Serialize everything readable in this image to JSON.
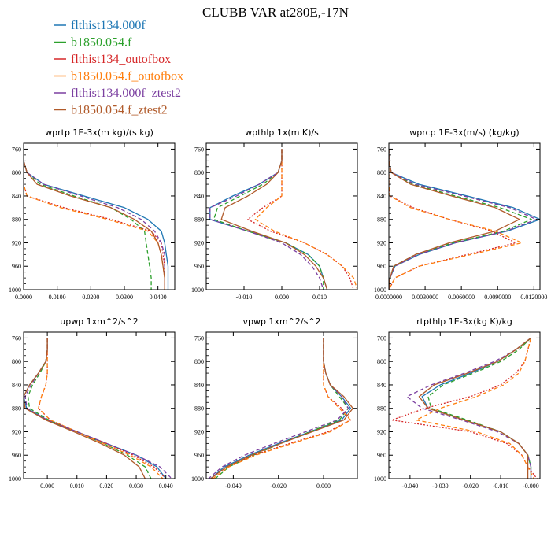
{
  "figure": {
    "title": "CLUBB VAR at280E,-17N"
  },
  "colors": {
    "flthist134.000f": "#1f77b4",
    "b1850.054.f": "#2ca02c",
    "flthist134_outofbox": "#d62728",
    "b1850.054.f_outofbox": "#ff7f0e",
    "flthist134.000f_ztest2": "#7b3fa0",
    "b1850.054.f_ztest2": "#b05a2a"
  },
  "legend": [
    {
      "label": "flthist134.000f",
      "style": "solid"
    },
    {
      "label": "b1850.054.f",
      "style": "dashed"
    },
    {
      "label": "flthist134_outofbox",
      "style": "dotted"
    },
    {
      "label": "b1850.054.f_outofbox",
      "style": "dashed"
    },
    {
      "label": "flthist134.000f_ztest2",
      "style": "dashed"
    },
    {
      "label": "b1850.054.f_ztest2",
      "style": "solid"
    }
  ],
  "chart_data": [
    {
      "type": "line",
      "title": "wprtp   1E-3x(m kg)/(s kg)",
      "xlim": [
        0.0,
        0.045
      ],
      "ylim": [
        1000,
        750
      ],
      "xticks": [
        0.0,
        0.01,
        0.02,
        0.03,
        0.04
      ],
      "xtick_labels": [
        "0.0000",
        "0.0100",
        "0.0200",
        "0.0300",
        "0.0400"
      ],
      "yticks": [
        760,
        800,
        840,
        880,
        920,
        960,
        1000
      ],
      "y": [
        760,
        780,
        800,
        820,
        840,
        860,
        880,
        900,
        920,
        940,
        960,
        980,
        1000
      ],
      "series": [
        {
          "name": "flthist134.000f",
          "values": [
            0.0,
            0.0,
            0.001,
            0.006,
            0.018,
            0.03,
            0.037,
            0.041,
            0.042,
            0.0425,
            0.043,
            0.043,
            0.043
          ]
        },
        {
          "name": "b1850.054.f",
          "values": [
            0.0,
            0.0,
            0.001,
            0.005,
            0.015,
            0.026,
            0.032,
            0.036,
            0.0365,
            0.037,
            0.0375,
            0.038,
            0.038
          ]
        },
        {
          "name": "flthist134_outofbox",
          "values": [
            0.0,
            0.0,
            0.0,
            0.0,
            0.001,
            0.012,
            0.026,
            0.038,
            0.041,
            0.0415,
            0.042,
            0.042,
            0.042
          ]
        },
        {
          "name": "b1850.054.f_outofbox",
          "values": [
            0.0,
            0.0,
            0.0,
            0.0,
            0.001,
            0.011,
            0.025,
            0.037,
            0.04,
            0.041,
            0.0415,
            0.042,
            0.042
          ]
        },
        {
          "name": "flthist134.000f_ztest2",
          "values": [
            0.0,
            0.0,
            0.001,
            0.006,
            0.017,
            0.028,
            0.035,
            0.039,
            0.041,
            0.042,
            0.042,
            0.042,
            0.042
          ]
        },
        {
          "name": "b1850.054.f_ztest2",
          "values": [
            0.0,
            0.0,
            0.001,
            0.004,
            0.014,
            0.026,
            0.033,
            0.038,
            0.04,
            0.041,
            0.0415,
            0.042,
            0.042
          ]
        }
      ]
    },
    {
      "type": "line",
      "title": "wpthlp   1x(m K)/s",
      "xlim": [
        -0.02,
        0.02
      ],
      "ylim": [
        1000,
        750
      ],
      "xticks": [
        -0.01,
        0.0,
        0.01
      ],
      "xtick_labels": [
        "-0.010",
        "0.000",
        "0.010"
      ],
      "yticks": [
        760,
        800,
        840,
        880,
        920,
        960,
        1000
      ],
      "y": [
        760,
        780,
        800,
        820,
        840,
        860,
        880,
        900,
        920,
        940,
        960,
        980,
        1000
      ],
      "series": [
        {
          "name": "flthist134.000f",
          "values": [
            0.0,
            0.0,
            -0.001,
            -0.006,
            -0.013,
            -0.019,
            -0.019,
            -0.009,
            0.001,
            0.007,
            0.01,
            0.011,
            0.012
          ]
        },
        {
          "name": "b1850.054.f",
          "values": [
            0.0,
            0.0,
            -0.001,
            -0.005,
            -0.011,
            -0.017,
            -0.018,
            -0.009,
            0.001,
            0.007,
            0.01,
            0.011,
            0.011
          ]
        },
        {
          "name": "flthist134_outofbox",
          "values": [
            0.0,
            0.0,
            0.0,
            0.0,
            0.0,
            -0.005,
            -0.009,
            -0.003,
            0.006,
            0.012,
            0.016,
            0.018,
            0.019
          ]
        },
        {
          "name": "b1850.054.f_outofbox",
          "values": [
            0.0,
            0.0,
            0.0,
            0.0,
            0.0,
            -0.004,
            -0.007,
            -0.002,
            0.006,
            0.012,
            0.016,
            0.019,
            0.02
          ]
        },
        {
          "name": "flthist134.000f_ztest2",
          "values": [
            0.0,
            0.0,
            -0.001,
            -0.006,
            -0.012,
            -0.019,
            -0.019,
            -0.009,
            0.0,
            0.005,
            0.008,
            0.01,
            0.011
          ]
        },
        {
          "name": "b1850.054.f_ztest2",
          "values": [
            0.0,
            0.0,
            -0.001,
            -0.004,
            -0.009,
            -0.015,
            -0.016,
            -0.008,
            0.001,
            0.006,
            0.009,
            0.011,
            0.012
          ]
        }
      ]
    },
    {
      "type": "line",
      "title": "wprcp   1E-3x(m/s) (kg/kg)",
      "xlim": [
        0.0,
        0.0125
      ],
      "ylim": [
        1000,
        750
      ],
      "xticks": [
        0.0,
        0.003,
        0.006,
        0.009,
        0.012
      ],
      "xtick_labels": [
        "0.0000000",
        "0.0030000",
        "0.0060000",
        "0.0090000",
        "0.0120000"
      ],
      "yticks": [
        760,
        800,
        840,
        880,
        920,
        960,
        1000
      ],
      "y": [
        760,
        780,
        800,
        820,
        840,
        860,
        880,
        900,
        920,
        940,
        960,
        980,
        1000
      ],
      "series": [
        {
          "name": "flthist134.000f",
          "values": [
            0.0,
            0.0,
            0.0002,
            0.0025,
            0.0065,
            0.0103,
            0.0125,
            0.0098,
            0.0055,
            0.0025,
            0.0005,
            0.0001,
            0.0
          ]
        },
        {
          "name": "b1850.054.f",
          "values": [
            0.0,
            0.0,
            0.0002,
            0.002,
            0.0055,
            0.0092,
            0.0118,
            0.0095,
            0.0053,
            0.0022,
            0.0004,
            0.0001,
            0.0
          ]
        },
        {
          "name": "flthist134_outofbox",
          "values": [
            0.0,
            0.0,
            0.0,
            0.0,
            0.0001,
            0.002,
            0.005,
            0.0085,
            0.0105,
            0.0065,
            0.0025,
            0.0005,
            0.0
          ]
        },
        {
          "name": "b1850.054.f_outofbox",
          "values": [
            0.0,
            0.0,
            0.0,
            0.0,
            0.0001,
            0.0018,
            0.005,
            0.0088,
            0.011,
            0.0068,
            0.0025,
            0.0005,
            0.0
          ]
        },
        {
          "name": "flthist134.000f_ztest2",
          "values": [
            0.0,
            0.0,
            0.0002,
            0.0022,
            0.0062,
            0.01,
            0.0122,
            0.0097,
            0.0055,
            0.0024,
            0.0005,
            0.0001,
            0.0
          ]
        },
        {
          "name": "b1850.054.f_ztest2",
          "values": [
            0.0,
            0.0,
            0.0002,
            0.0018,
            0.0052,
            0.0088,
            0.0108,
            0.0088,
            0.005,
            0.0022,
            0.0004,
            0.0001,
            0.0
          ]
        }
      ]
    },
    {
      "type": "line",
      "title": "upwp   1xm^2/s^2",
      "xlim": [
        -0.008,
        0.043
      ],
      "ylim": [
        1000,
        750
      ],
      "xticks": [
        0.0,
        0.01,
        0.02,
        0.03,
        0.04
      ],
      "xtick_labels": [
        "0.000",
        "0.010",
        "0.020",
        "0.030",
        "0.040"
      ],
      "yticks": [
        760,
        800,
        840,
        880,
        920,
        960,
        1000
      ],
      "y": [
        760,
        780,
        800,
        820,
        840,
        860,
        880,
        900,
        920,
        940,
        960,
        980,
        1000
      ],
      "series": [
        {
          "name": "flthist134.000f",
          "values": [
            0.0,
            0.0,
            -0.0005,
            -0.003,
            -0.006,
            -0.008,
            -0.007,
            0.0,
            0.01,
            0.02,
            0.03,
            0.037,
            0.04
          ]
        },
        {
          "name": "b1850.054.f",
          "values": [
            0.0,
            0.0,
            -0.0005,
            -0.0025,
            -0.005,
            -0.0065,
            -0.006,
            0.0005,
            0.01,
            0.019,
            0.027,
            0.033,
            0.035
          ]
        },
        {
          "name": "flthist134_outofbox",
          "values": [
            0.0,
            0.0,
            0.0,
            0.0,
            -0.0005,
            -0.002,
            -0.003,
            0.001,
            0.01,
            0.02,
            0.029,
            0.036,
            0.04
          ]
        },
        {
          "name": "b1850.054.f_outofbox",
          "values": [
            0.0,
            0.0,
            0.0,
            0.0,
            -0.0005,
            -0.002,
            -0.003,
            0.001,
            0.01,
            0.019,
            0.028,
            0.035,
            0.039
          ]
        },
        {
          "name": "flthist134.000f_ztest2",
          "values": [
            0.0,
            0.0,
            -0.0005,
            -0.003,
            -0.0055,
            -0.0075,
            -0.0068,
            0.0,
            0.01,
            0.02,
            0.03,
            0.038,
            0.042
          ]
        },
        {
          "name": "b1850.054.f_ztest2",
          "values": [
            0.0,
            0.0,
            -0.0005,
            -0.003,
            -0.006,
            -0.008,
            -0.0075,
            -0.0005,
            0.009,
            0.018,
            0.026,
            0.031,
            0.033
          ]
        }
      ]
    },
    {
      "type": "line",
      "title": "vpwp   1xm^2/s^2",
      "xlim": [
        -0.052,
        0.015
      ],
      "ylim": [
        1000,
        750
      ],
      "xticks": [
        -0.04,
        -0.02,
        0.0
      ],
      "xtick_labels": [
        "-0.040",
        "-0.020",
        "0.000"
      ],
      "yticks": [
        760,
        800,
        840,
        880,
        920,
        960,
        1000
      ],
      "y": [
        760,
        780,
        800,
        820,
        840,
        860,
        880,
        900,
        920,
        940,
        960,
        980,
        1000
      ],
      "series": [
        {
          "name": "flthist134.000f",
          "values": [
            0.0,
            0.0,
            0.0,
            0.001,
            0.003,
            0.008,
            0.012,
            0.008,
            -0.006,
            -0.02,
            -0.033,
            -0.044,
            -0.05
          ]
        },
        {
          "name": "b1850.054.f",
          "values": [
            0.0,
            0.0,
            0.0,
            0.001,
            0.003,
            0.007,
            0.011,
            0.007,
            -0.006,
            -0.019,
            -0.031,
            -0.042,
            -0.048
          ]
        },
        {
          "name": "flthist134_outofbox",
          "values": [
            0.0,
            0.0,
            0.0,
            0.0,
            0.0,
            0.002,
            0.008,
            0.012,
            0.002,
            -0.015,
            -0.031,
            -0.043,
            -0.05
          ]
        },
        {
          "name": "b1850.054.f_outofbox",
          "values": [
            0.0,
            0.0,
            0.0,
            0.0,
            0.0,
            0.002,
            0.007,
            0.012,
            0.003,
            -0.014,
            -0.03,
            -0.042,
            -0.049
          ]
        },
        {
          "name": "flthist134.000f_ztest2",
          "values": [
            0.0,
            0.0,
            0.0,
            0.001,
            0.003,
            0.008,
            0.011,
            0.006,
            -0.008,
            -0.022,
            -0.035,
            -0.045,
            -0.051
          ]
        },
        {
          "name": "b1850.054.f_ztest2",
          "values": [
            0.0,
            0.0,
            0.0,
            0.001,
            0.003,
            0.009,
            0.013,
            0.009,
            -0.005,
            -0.019,
            -0.032,
            -0.043,
            -0.05
          ]
        }
      ]
    },
    {
      "type": "line",
      "title": "rtpthlp   1E-3x(kg K)/kg",
      "xlim": [
        -0.047,
        0.003
      ],
      "ylim": [
        1000,
        750
      ],
      "xticks": [
        -0.04,
        -0.03,
        -0.02,
        -0.01,
        0.0
      ],
      "xtick_labels": [
        "-0.040",
        "-0.030",
        "-0.020",
        "-0.010",
        "-0.000"
      ],
      "yticks": [
        760,
        800,
        840,
        880,
        920,
        960,
        1000
      ],
      "y": [
        760,
        780,
        800,
        820,
        840,
        860,
        880,
        900,
        920,
        940,
        960,
        980,
        1000
      ],
      "series": [
        {
          "name": "flthist134.000f",
          "values": [
            0.0,
            -0.005,
            -0.011,
            -0.02,
            -0.03,
            -0.036,
            -0.034,
            -0.022,
            -0.01,
            -0.004,
            -0.001,
            0.0,
            0.0
          ]
        },
        {
          "name": "b1850.054.f",
          "values": [
            0.0,
            -0.004,
            -0.01,
            -0.019,
            -0.029,
            -0.034,
            -0.033,
            -0.021,
            -0.01,
            -0.004,
            -0.001,
            0.0,
            0.0
          ]
        },
        {
          "name": "flthist134_outofbox",
          "values": [
            0.0,
            -0.001,
            -0.002,
            -0.005,
            -0.01,
            -0.02,
            -0.035,
            -0.046,
            -0.02,
            -0.008,
            -0.003,
            -0.001,
            0.002
          ]
        },
        {
          "name": "b1850.054.f_outofbox",
          "values": [
            0.0,
            -0.001,
            -0.002,
            -0.004,
            -0.009,
            -0.018,
            -0.03,
            -0.038,
            -0.018,
            -0.007,
            -0.003,
            -0.001,
            0.001
          ]
        },
        {
          "name": "flthist134.000f_ztest2",
          "values": [
            0.0,
            -0.005,
            -0.012,
            -0.022,
            -0.033,
            -0.041,
            -0.036,
            -0.023,
            -0.011,
            -0.004,
            -0.001,
            0.0,
            0.0
          ]
        },
        {
          "name": "b1850.054.f_ztest2",
          "values": [
            0.0,
            -0.005,
            -0.011,
            -0.021,
            -0.032,
            -0.037,
            -0.034,
            -0.022,
            -0.01,
            -0.004,
            -0.001,
            -0.001,
            -0.001
          ]
        }
      ]
    }
  ]
}
